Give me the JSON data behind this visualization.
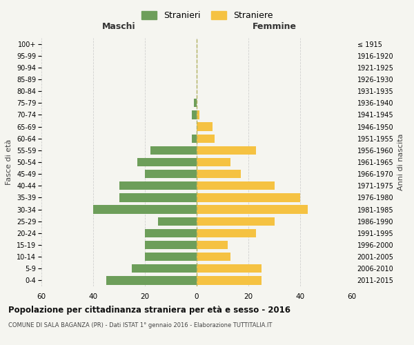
{
  "age_groups": [
    "0-4",
    "5-9",
    "10-14",
    "15-19",
    "20-24",
    "25-29",
    "30-34",
    "35-39",
    "40-44",
    "45-49",
    "50-54",
    "55-59",
    "60-64",
    "65-69",
    "70-74",
    "75-79",
    "80-84",
    "85-89",
    "90-94",
    "95-99",
    "100+"
  ],
  "birth_years": [
    "2011-2015",
    "2006-2010",
    "2001-2005",
    "1996-2000",
    "1991-1995",
    "1986-1990",
    "1981-1985",
    "1976-1980",
    "1971-1975",
    "1966-1970",
    "1961-1965",
    "1956-1960",
    "1951-1955",
    "1946-1950",
    "1941-1945",
    "1936-1940",
    "1931-1935",
    "1926-1930",
    "1921-1925",
    "1916-1920",
    "≤ 1915"
  ],
  "males": [
    35,
    25,
    20,
    20,
    20,
    15,
    40,
    30,
    30,
    20,
    23,
    18,
    2,
    0,
    2,
    1,
    0,
    0,
    0,
    0,
    0
  ],
  "females": [
    25,
    25,
    13,
    12,
    23,
    30,
    43,
    40,
    30,
    17,
    13,
    23,
    7,
    6,
    1,
    0,
    0,
    0,
    0,
    0,
    0
  ],
  "color_males": "#6d9e5a",
  "color_females": "#f5c242",
  "background_color": "#f5f5f0",
  "grid_color": "#cccccc",
  "title": "Popolazione per cittadinanza straniera per età e sesso - 2016",
  "subtitle": "COMUNE DI SALA BAGANZA (PR) - Dati ISTAT 1° gennaio 2016 - Elaborazione TUTTITALIA.IT",
  "xlabel_left": "Maschi",
  "xlabel_right": "Femmine",
  "ylabel_left": "Fasce di età",
  "ylabel_right": "Anni di nascita",
  "legend_males": "Stranieri",
  "legend_females": "Straniere",
  "xlim": 60,
  "dashed_line_color": "#b0b060"
}
